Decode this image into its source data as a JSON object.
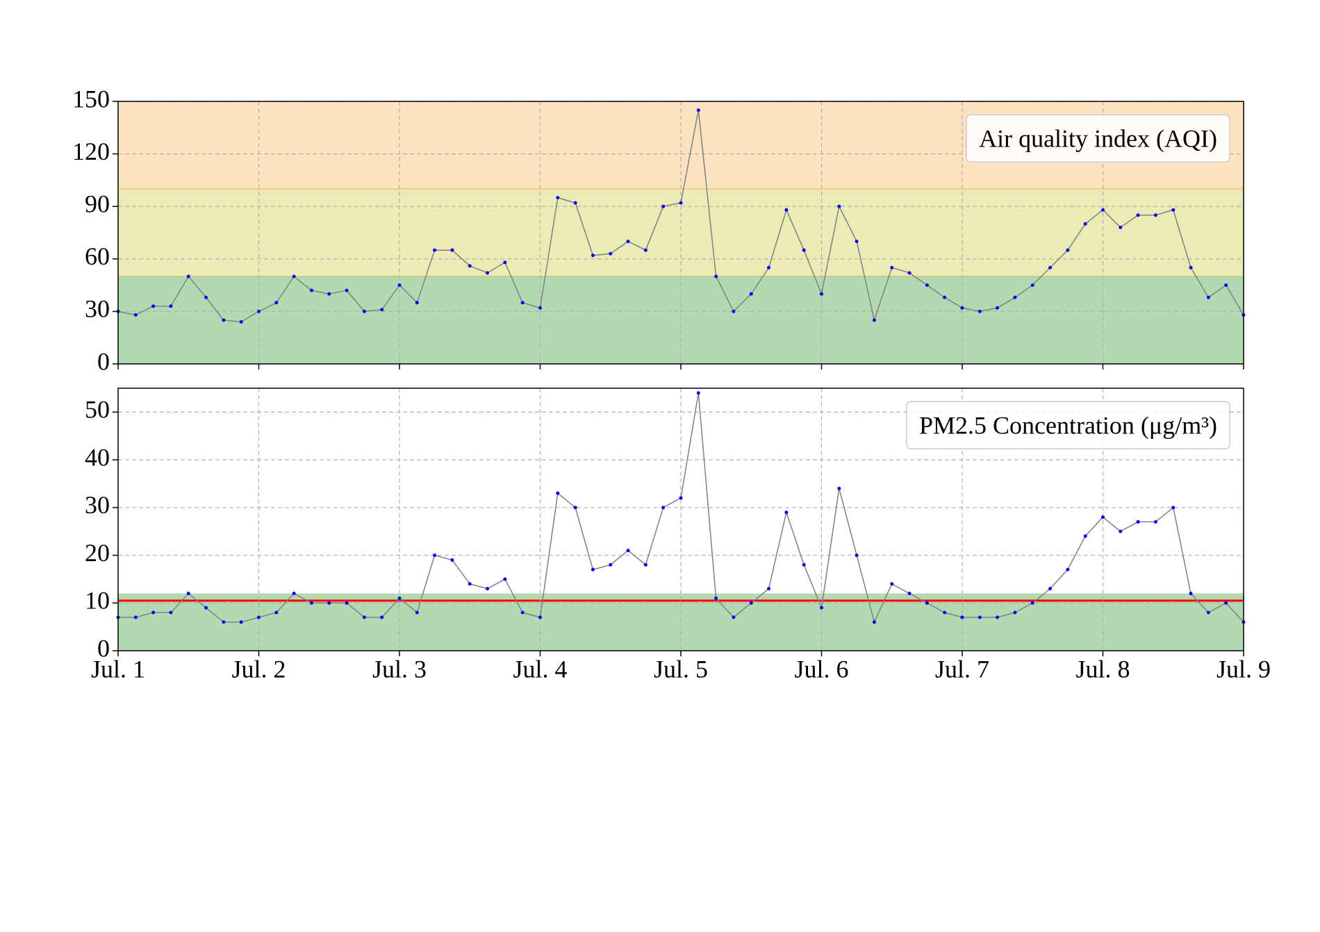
{
  "chart_data": [
    {
      "type": "line",
      "title": "Air quality index (AQI)",
      "x": [
        1,
        1.125,
        1.25,
        1.375,
        1.5,
        1.625,
        1.75,
        1.875,
        2,
        2.125,
        2.25,
        2.375,
        2.5,
        2.625,
        2.75,
        2.875,
        3,
        3.125,
        3.25,
        3.375,
        3.5,
        3.625,
        3.75,
        3.875,
        4,
        4.125,
        4.25,
        4.375,
        4.5,
        4.625,
        4.75,
        4.875,
        5,
        5.125,
        5.25,
        5.375,
        5.5,
        5.625,
        5.75,
        5.875,
        6,
        6.125,
        6.25,
        6.375,
        6.5,
        6.625,
        6.75,
        6.875,
        7,
        7.125,
        7.25,
        7.375,
        7.5,
        7.625,
        7.75,
        7.875,
        8,
        8.125,
        8.25,
        8.375,
        8.5,
        8.625,
        8.75,
        8.875,
        9
      ],
      "values": [
        30,
        28,
        33,
        33,
        50,
        38,
        25,
        24,
        30,
        35,
        50,
        42,
        40,
        42,
        30,
        31,
        45,
        35,
        65,
        65,
        56,
        52,
        58,
        35,
        32,
        95,
        92,
        62,
        63,
        70,
        65,
        90,
        92,
        145,
        50,
        30,
        40,
        55,
        88,
        65,
        40,
        90,
        70,
        25,
        55,
        52,
        45,
        38,
        32,
        30,
        32,
        38,
        45,
        55,
        65,
        80,
        88,
        78,
        85,
        85,
        88,
        55,
        38,
        45,
        28
      ],
      "line_color": "#808080",
      "marker_color": "#0000ff",
      "xlim": [
        1,
        9
      ],
      "xticks": [
        1,
        2,
        3,
        4,
        5,
        6,
        7,
        8,
        9
      ],
      "ylim": [
        0,
        150
      ],
      "yticks": [
        0,
        30,
        60,
        90,
        120,
        150
      ],
      "grid": true,
      "bands": [
        {
          "from": 0,
          "to": 50,
          "color": "#b3d9b3"
        },
        {
          "from": 50,
          "to": 100,
          "color": "#ebebb5"
        },
        {
          "from": 100,
          "to": 150,
          "color": "#fde3c0"
        }
      ],
      "hlines": [
        {
          "value": 50,
          "color": "#c8c878"
        },
        {
          "value": 100,
          "color": "#f5c27a"
        }
      ]
    },
    {
      "type": "line",
      "title": "PM2.5 Concentration (μg/m³)",
      "x": [
        1,
        1.125,
        1.25,
        1.375,
        1.5,
        1.625,
        1.75,
        1.875,
        2,
        2.125,
        2.25,
        2.375,
        2.5,
        2.625,
        2.75,
        2.875,
        3,
        3.125,
        3.25,
        3.375,
        3.5,
        3.625,
        3.75,
        3.875,
        4,
        4.125,
        4.25,
        4.375,
        4.5,
        4.625,
        4.75,
        4.875,
        5,
        5.125,
        5.25,
        5.375,
        5.5,
        5.625,
        5.75,
        5.875,
        6,
        6.125,
        6.25,
        6.375,
        6.5,
        6.625,
        6.75,
        6.875,
        7,
        7.125,
        7.25,
        7.375,
        7.5,
        7.625,
        7.75,
        7.875,
        8,
        8.125,
        8.25,
        8.375,
        8.5,
        8.625,
        8.75,
        8.875,
        9
      ],
      "values": [
        7,
        7,
        8,
        8,
        12,
        9,
        6,
        6,
        7,
        8,
        12,
        10,
        10,
        10,
        7,
        7,
        11,
        8,
        20,
        19,
        14,
        13,
        15,
        8,
        7,
        33,
        30,
        17,
        18,
        21,
        18,
        30,
        32,
        54,
        11,
        7,
        10,
        13,
        29,
        18,
        9,
        34,
        20,
        6,
        14,
        12,
        10,
        8,
        7,
        7,
        7,
        8,
        10,
        13,
        17,
        24,
        28,
        25,
        27,
        27,
        30,
        12,
        8,
        10,
        6
      ],
      "line_color": "#808080",
      "marker_color": "#0000ff",
      "xlim": [
        1,
        9
      ],
      "xticks": [
        {
          "value": 1,
          "label": "Jul. 1"
        },
        {
          "value": 2,
          "label": "Jul. 2"
        },
        {
          "value": 3,
          "label": "Jul. 3"
        },
        {
          "value": 4,
          "label": "Jul. 4"
        },
        {
          "value": 5,
          "label": "Jul. 5"
        },
        {
          "value": 6,
          "label": "Jul. 6"
        },
        {
          "value": 7,
          "label": "Jul. 7"
        },
        {
          "value": 8,
          "label": "Jul. 8"
        },
        {
          "value": 9,
          "label": "Jul. 9"
        }
      ],
      "ylim": [
        0,
        55
      ],
      "yticks": [
        0,
        10,
        20,
        30,
        40,
        50
      ],
      "grid": true,
      "bands": [
        {
          "from": 0,
          "to": 12,
          "color": "#b3d9b3"
        }
      ],
      "hlines": [
        {
          "value": 10.5,
          "color": "#ff0000"
        }
      ]
    }
  ]
}
